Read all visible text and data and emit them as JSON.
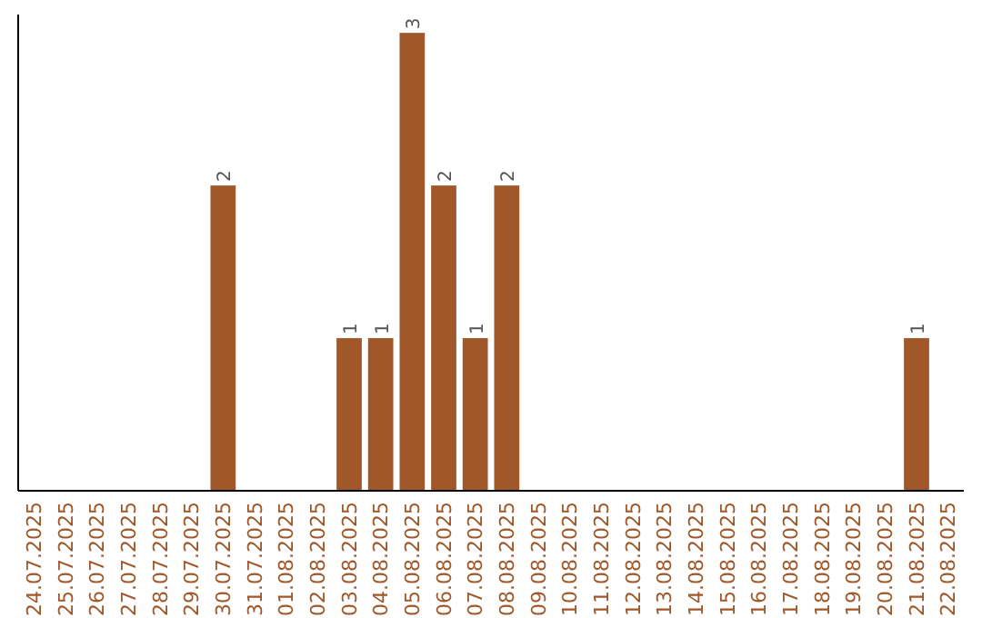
{
  "chart_data": {
    "type": "bar",
    "categories": [
      "24.07.2025",
      "25.07.2025",
      "26.07.2025",
      "27.07.2025",
      "28.07.2025",
      "29.07.2025",
      "30.07.2025",
      "31.07.2025",
      "01.08.2025",
      "02.08.2025",
      "03.08.2025",
      "04.08.2025",
      "05.08.2025",
      "06.08.2025",
      "07.08.2025",
      "08.08.2025",
      "09.08.2025",
      "10.08.2025",
      "11.08.2025",
      "12.08.2025",
      "13.08.2025",
      "14.08.2025",
      "15.08.2025",
      "16.08.2025",
      "17.08.2025",
      "18.08.2025",
      "19.08.2025",
      "20.08.2025",
      "21.08.2025",
      "22.08.2025"
    ],
    "values": [
      0,
      0,
      0,
      0,
      0,
      0,
      2,
      0,
      0,
      0,
      1,
      1,
      3,
      2,
      1,
      2,
      0,
      0,
      0,
      0,
      0,
      0,
      0,
      0,
      0,
      0,
      0,
      0,
      1,
      0
    ],
    "value_labels": [
      null,
      null,
      null,
      null,
      null,
      null,
      "2",
      null,
      null,
      null,
      "1",
      "1",
      "3",
      "2",
      "1",
      "2",
      null,
      null,
      null,
      null,
      null,
      null,
      null,
      null,
      null,
      null,
      null,
      null,
      "1",
      null
    ],
    "color": "#a0582a",
    "grid": false,
    "tick_labels": "x"
  }
}
